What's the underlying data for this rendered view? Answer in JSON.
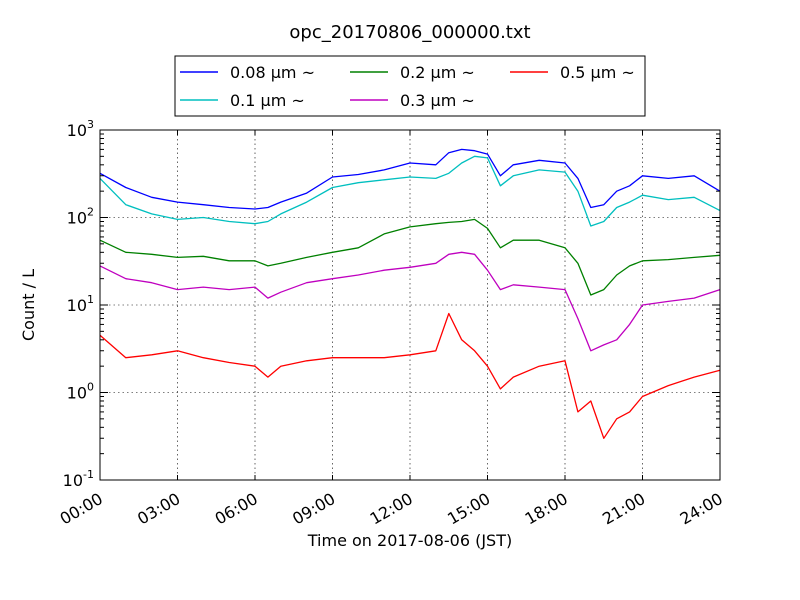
{
  "chart_data": {
    "type": "line",
    "title": "opc_20170806_000000.txt",
    "xlabel": "Time on 2017-08-06 (JST)",
    "ylabel": "Count / L",
    "y_scale": "log",
    "ylim": [
      0.1,
      1000
    ],
    "xlim": [
      "00:00",
      "24:00"
    ],
    "x_ticks": [
      "00:00",
      "03:00",
      "06:00",
      "09:00",
      "12:00",
      "15:00",
      "18:00",
      "21:00",
      "24:00"
    ],
    "y_ticks": [
      {
        "base": "10",
        "exp": "-1",
        "value": 0.1
      },
      {
        "base": "10",
        "exp": "0",
        "value": 1
      },
      {
        "base": "10",
        "exp": "1",
        "value": 10
      },
      {
        "base": "10",
        "exp": "2",
        "value": 100
      },
      {
        "base": "10",
        "exp": "3",
        "value": 1000
      }
    ],
    "grid": true,
    "legend_position": "top, outside plot",
    "x": [
      "00:00",
      "01:00",
      "02:00",
      "03:00",
      "04:00",
      "05:00",
      "06:00",
      "06:30",
      "07:00",
      "08:00",
      "09:00",
      "10:00",
      "11:00",
      "12:00",
      "13:00",
      "13:30",
      "14:00",
      "14:30",
      "15:00",
      "15:30",
      "16:00",
      "17:00",
      "18:00",
      "18:30",
      "19:00",
      "19:30",
      "20:00",
      "20:30",
      "21:00",
      "22:00",
      "23:00",
      "24:00"
    ],
    "series": [
      {
        "name": "0.08 μm ~",
        "color": "#0000ff",
        "values": [
          320,
          220,
          170,
          150,
          140,
          130,
          125,
          130,
          150,
          190,
          290,
          310,
          350,
          420,
          400,
          550,
          600,
          580,
          530,
          300,
          400,
          450,
          420,
          280,
          130,
          140,
          200,
          230,
          300,
          280,
          300,
          200
        ]
      },
      {
        "name": "0.1 μm ~",
        "color": "#00bfbf",
        "values": [
          280,
          140,
          110,
          95,
          100,
          90,
          85,
          90,
          110,
          150,
          220,
          250,
          270,
          290,
          280,
          320,
          420,
          500,
          480,
          230,
          300,
          350,
          330,
          200,
          80,
          90,
          130,
          150,
          180,
          160,
          170,
          120
        ]
      },
      {
        "name": "0.2 μm ~",
        "color": "#008000",
        "values": [
          55,
          40,
          38,
          35,
          36,
          32,
          32,
          28,
          30,
          35,
          40,
          45,
          65,
          78,
          85,
          88,
          90,
          95,
          75,
          45,
          55,
          55,
          45,
          30,
          13,
          15,
          22,
          28,
          32,
          33,
          35,
          37
        ]
      },
      {
        "name": "0.3 μm ~",
        "color": "#bf00bf",
        "values": [
          28,
          20,
          18,
          15,
          16,
          15,
          16,
          12,
          14,
          18,
          20,
          22,
          25,
          27,
          30,
          38,
          40,
          38,
          25,
          15,
          17,
          16,
          15,
          7,
          3,
          3.5,
          4,
          6,
          10,
          11,
          12,
          15
        ]
      },
      {
        "name": "0.5 μm ~",
        "color": "#ff0000",
        "values": [
          4.5,
          2.5,
          2.7,
          3,
          2.5,
          2.2,
          2,
          1.5,
          2,
          2.3,
          2.5,
          2.5,
          2.5,
          2.7,
          3,
          8,
          4,
          3,
          2,
          1.1,
          1.5,
          2,
          2.3,
          0.6,
          0.8,
          0.3,
          0.5,
          0.6,
          0.9,
          1.2,
          1.5,
          1.8
        ]
      }
    ]
  }
}
